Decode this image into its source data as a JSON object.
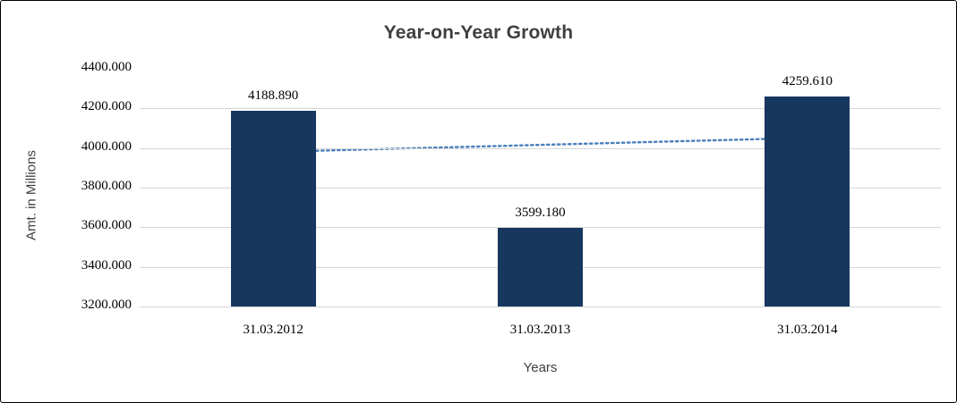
{
  "chart_data": {
    "type": "bar",
    "title": "Year-on-Year Growth",
    "xlabel": "Years",
    "ylabel": "Amt. in Millions",
    "categories": [
      "31.03.2012",
      "31.03.2013",
      "31.03.2014"
    ],
    "values": [
      4188.89,
      3599.18,
      4259.61
    ],
    "value_labels": [
      "4188.890",
      "3599.180",
      "4259.610"
    ],
    "ylim": [
      3200,
      4400
    ],
    "yticks": [
      3200,
      3400,
      3600,
      3800,
      4000,
      4200,
      4400
    ],
    "ytick_labels": [
      "3200.000",
      "3400.000",
      "3600.000",
      "3800.000",
      "4000.000",
      "4200.000",
      "4400.000"
    ],
    "grid": true,
    "legend": "none",
    "bar_color": "#17375e",
    "gridline_color": "#d6d6d6",
    "trendline": {
      "type": "linear",
      "style": "dotted",
      "color": "#4a7ebb",
      "start_value": 3980.5,
      "end_value": 4051.3
    }
  }
}
